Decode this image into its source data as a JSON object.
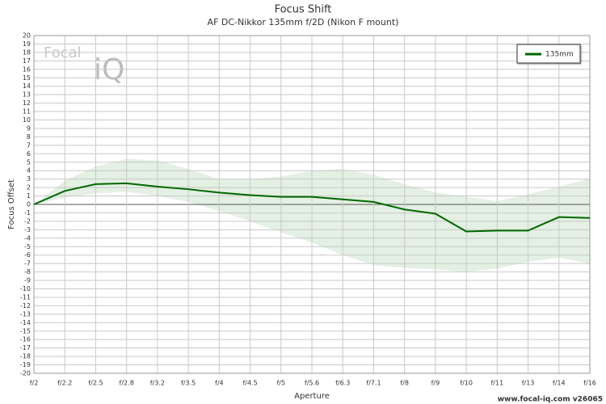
{
  "chart_data": {
    "type": "line",
    "title": "Focus Shift",
    "subtitle": "AF DC-Nikkor 135mm f/2D (Nikon F mount)",
    "x_label": "Aperture",
    "y_label": "Focus Offset",
    "footer": "www.focal-iq.com  v26065",
    "watermark": [
      "Focal",
      "iQ"
    ],
    "categories": [
      "f/2",
      "f/2.2",
      "f/2.5",
      "f/2.8",
      "f/3.2",
      "f/3.5",
      "f/4",
      "f/4.5",
      "f/5",
      "f/5.6",
      "f/6.3",
      "f/7.1",
      "f/8",
      "f/9",
      "f/10",
      "f/11",
      "f/13",
      "f/14",
      "f/16"
    ],
    "series": [
      {
        "name": "135mm",
        "color": "#006600",
        "values": [
          0,
          1.6,
          2.4,
          2.5,
          2.1,
          1.8,
          1.4,
          1.1,
          0.9,
          0.9,
          0.6,
          0.3,
          -0.6,
          -1.1,
          -3.2,
          -3.1,
          -3.1,
          -1.5,
          -1.6
        ]
      }
    ],
    "band": {
      "color": "#e3f0e3",
      "upper": [
        0,
        2.8,
        4.5,
        5.4,
        5.2,
        4.2,
        3.0,
        3.0,
        3.3,
        4.0,
        4.2,
        3.5,
        2.4,
        1.4,
        0.9,
        0.4,
        1.2,
        2.1,
        3.1
      ],
      "lower": [
        0,
        0.8,
        1.3,
        1.5,
        1.0,
        0.3,
        -0.8,
        -2.0,
        -3.3,
        -4.5,
        -6.0,
        -7.2,
        -7.5,
        -7.7,
        -8.0,
        -7.6,
        -6.8,
        -6.3,
        -7.0
      ]
    },
    "ylim": [
      -20,
      20
    ],
    "yticks": [
      -20,
      -19,
      -18,
      -17,
      -16,
      -15,
      -14,
      -13,
      -12,
      -11,
      -10,
      -9,
      -8,
      -7,
      -6,
      -5,
      -4,
      -3,
      -2,
      -1,
      0,
      1,
      2,
      3,
      4,
      5,
      6,
      7,
      8,
      9,
      10,
      11,
      12,
      13,
      14,
      15,
      16,
      17,
      18,
      19,
      20
    ],
    "grid": true,
    "legend": "top-right"
  }
}
